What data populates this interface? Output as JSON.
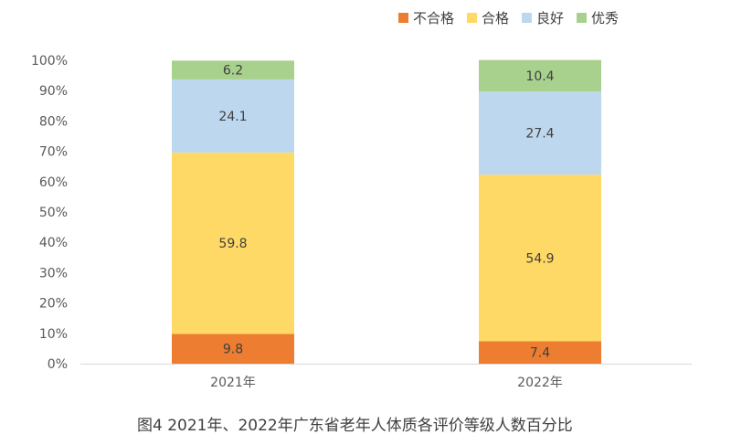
{
  "chart_data": {
    "type": "bar",
    "stacked": true,
    "categories": [
      "2021年",
      "2022年"
    ],
    "series": [
      {
        "name": "不合格",
        "color": "#ED7D31",
        "values": [
          9.8,
          7.4
        ],
        "labels": [
          "9.8",
          "7.4"
        ]
      },
      {
        "name": "合格",
        "color": "#FFD966",
        "values": [
          59.8,
          54.9
        ],
        "labels": [
          "59.8",
          "54.9"
        ]
      },
      {
        "name": "良好",
        "color": "#BDD7EE",
        "values": [
          24.1,
          27.4
        ],
        "labels": [
          "24.1",
          "27.4"
        ]
      },
      {
        "name": "优秀",
        "color": "#A9D18E",
        "values": [
          6.2,
          10.4
        ],
        "labels": [
          "6.2",
          "10.4"
        ]
      }
    ],
    "y_ticks": [
      "0%",
      "10%",
      "20%",
      "30%",
      "40%",
      "50%",
      "60%",
      "70%",
      "80%",
      "90%",
      "100%"
    ],
    "ylim": [
      0,
      100
    ],
    "legend_position": "top",
    "grid": false
  },
  "caption": "图4   2021年、2022年广东省老年人体质各评价等级人数百分比"
}
